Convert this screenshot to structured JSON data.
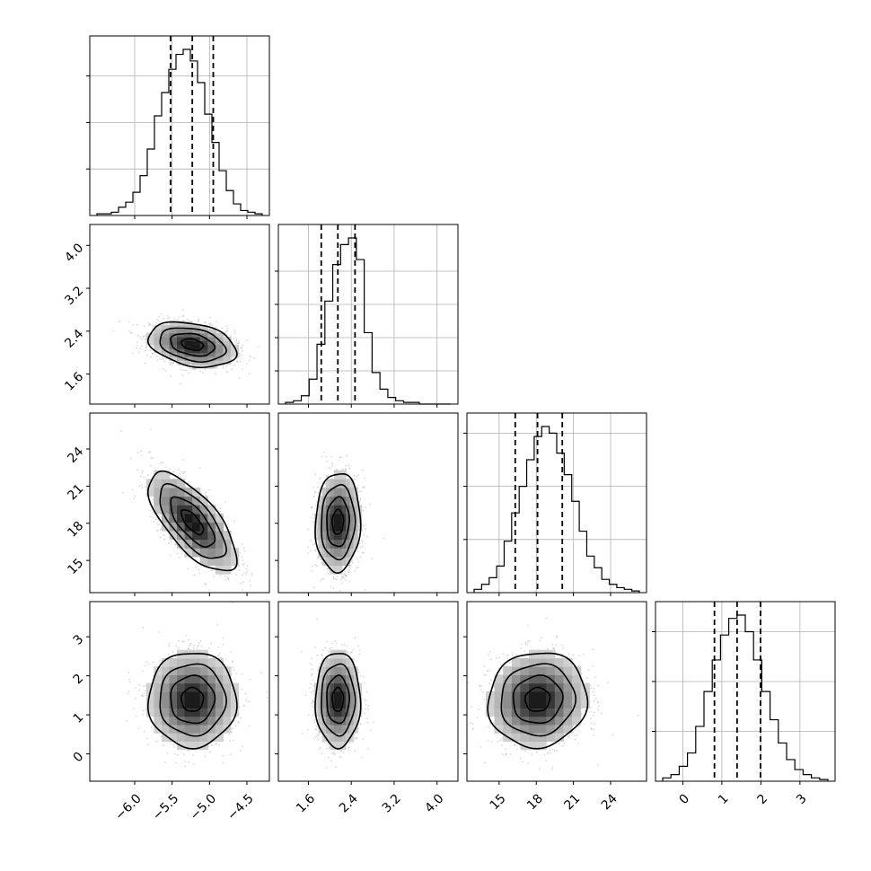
{
  "chart_data": {
    "type": "corner",
    "title": "",
    "grid": true,
    "variables": [
      {
        "xlim": [
          -6.6,
          -4.2
        ],
        "ticks": [
          -6.0,
          -5.5,
          -5.0,
          -4.5
        ],
        "tick_labels": [
          "−6.0",
          "−5.5",
          "−5.0",
          "−4.5"
        ],
        "quantiles": [
          -5.52,
          -5.23,
          -4.95
        ],
        "hist_y_ticks_frac": [
          0.28,
          0.56,
          0.84
        ]
      },
      {
        "xlim": [
          1.04,
          4.39
        ],
        "ticks": [
          1.6,
          2.4,
          3.2,
          4.0
        ],
        "tick_labels": [
          "1.6",
          "2.4",
          "3.2",
          "4.0"
        ],
        "quantiles": [
          1.84,
          2.15,
          2.47
        ],
        "hist_y_ticks_frac": [
          0.2,
          0.4,
          0.6,
          0.8
        ]
      },
      {
        "xlim": [
          12.4,
          26.9
        ],
        "ticks": [
          15,
          18,
          21,
          24
        ],
        "tick_labels": [
          "15",
          "18",
          "21",
          "24"
        ],
        "quantiles": [
          16.3,
          18.1,
          20.1
        ],
        "hist_y_ticks_frac": [
          0.32,
          0.64,
          0.96
        ]
      },
      {
        "xlim": [
          -0.7,
          3.9
        ],
        "ticks": [
          0,
          1,
          2,
          3
        ],
        "tick_labels": [
          "0",
          "1",
          "2",
          "3"
        ],
        "quantiles": [
          0.81,
          1.39,
          1.99
        ],
        "hist_y_ticks_frac": [
          0.3,
          0.6,
          0.9
        ]
      }
    ],
    "histograms": [
      [
        0.01,
        0.01,
        0.02,
        0.05,
        0.08,
        0.14,
        0.24,
        0.4,
        0.6,
        0.74,
        0.88,
        0.97,
        1.0,
        0.93,
        0.8,
        0.61,
        0.44,
        0.27,
        0.15,
        0.07,
        0.03,
        0.02,
        0.01
      ],
      [
        0.01,
        0.02,
        0.05,
        0.15,
        0.36,
        0.62,
        0.84,
        0.96,
        1.0,
        0.87,
        0.43,
        0.19,
        0.09,
        0.04,
        0.02,
        0.01,
        0.01,
        0.0,
        0.0,
        0.0,
        0.0
      ],
      [
        0.02,
        0.05,
        0.09,
        0.16,
        0.31,
        0.48,
        0.64,
        0.8,
        0.94,
        1.0,
        0.96,
        0.84,
        0.71,
        0.55,
        0.37,
        0.22,
        0.15,
        0.08,
        0.05,
        0.03,
        0.02,
        0.01
      ],
      [
        0.02,
        0.04,
        0.09,
        0.17,
        0.33,
        0.54,
        0.73,
        0.88,
        0.98,
        1.0,
        0.9,
        0.73,
        0.54,
        0.37,
        0.23,
        0.13,
        0.07,
        0.04,
        0.02,
        0.01
      ]
    ],
    "pairs": [
      {
        "i": 1,
        "j": 0,
        "mean": [
          -5.23,
          2.15
        ],
        "sd": [
          0.28,
          0.2
        ],
        "rho": -0.3
      },
      {
        "i": 2,
        "j": 0,
        "mean": [
          -5.23,
          18.1
        ],
        "sd": [
          0.28,
          1.9
        ],
        "rho": -0.7
      },
      {
        "i": 2,
        "j": 1,
        "mean": [
          2.15,
          18.1
        ],
        "sd": [
          0.2,
          1.9
        ],
        "rho": 0.05
      },
      {
        "i": 3,
        "j": 0,
        "mean": [
          -5.23,
          1.39
        ],
        "sd": [
          0.28,
          0.58
        ],
        "rho": 0.0
      },
      {
        "i": 3,
        "j": 1,
        "mean": [
          2.15,
          1.39
        ],
        "sd": [
          0.2,
          0.58
        ],
        "rho": 0.0
      },
      {
        "i": 3,
        "j": 2,
        "mean": [
          18.1,
          1.39
        ],
        "sd": [
          1.9,
          0.58
        ],
        "rho": 0.05
      }
    ],
    "contour_levels_sigma": [
      0.5,
      1.0,
      1.5,
      2.0
    ]
  }
}
